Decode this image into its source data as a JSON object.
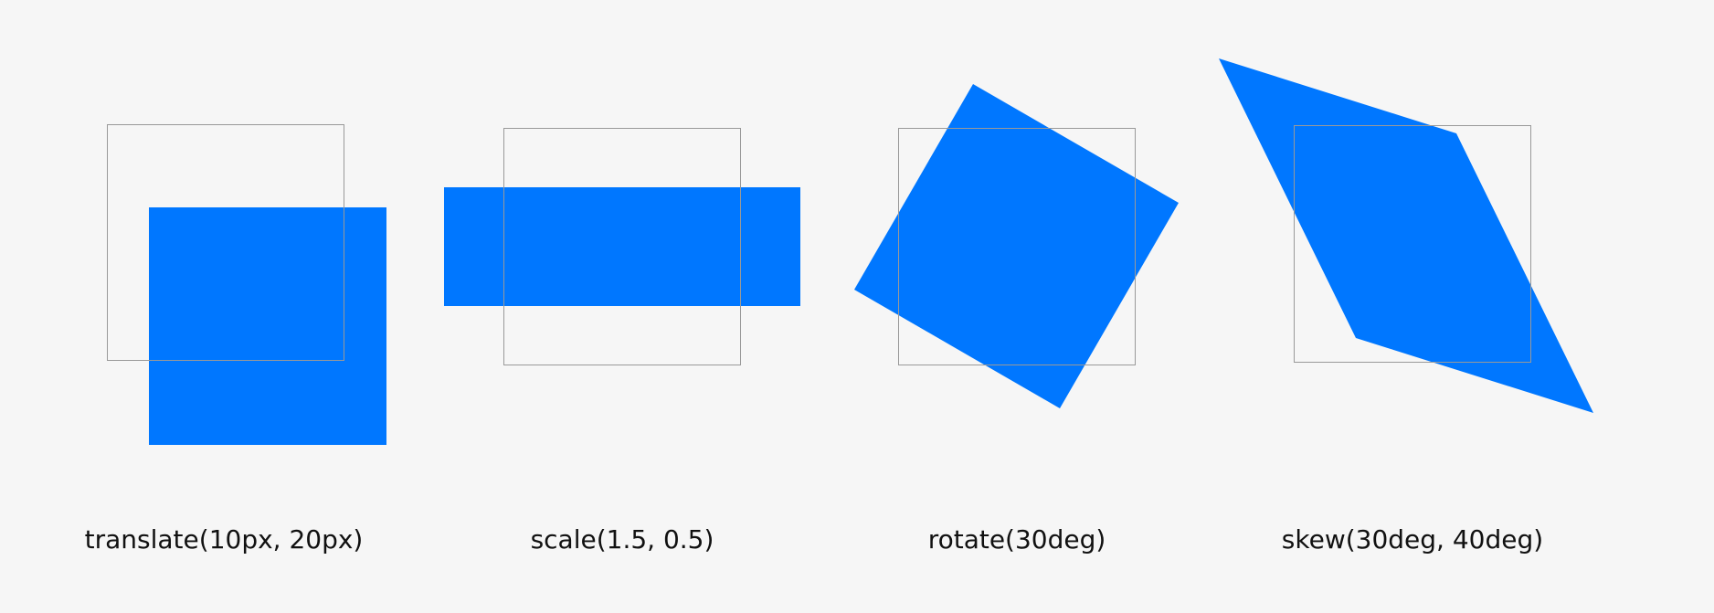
{
  "colors": {
    "background": "#f6f6f6",
    "shape_fill": "#0077ff",
    "outline": "#999999",
    "text": "#111111"
  },
  "examples": [
    {
      "label": "translate(10px, 20px)",
      "function": "translate",
      "args": {
        "tx": 10,
        "ty": 20
      }
    },
    {
      "label": "scale(1.5, 0.5)",
      "function": "scale",
      "args": {
        "sx": 1.5,
        "sy": 0.5
      }
    },
    {
      "label": "rotate(30deg)",
      "function": "rotate",
      "args": {
        "angle": 30
      }
    },
    {
      "label": "skew(30deg, 40deg)",
      "function": "skew",
      "args": {
        "ax": 30,
        "ay": 40
      }
    }
  ]
}
